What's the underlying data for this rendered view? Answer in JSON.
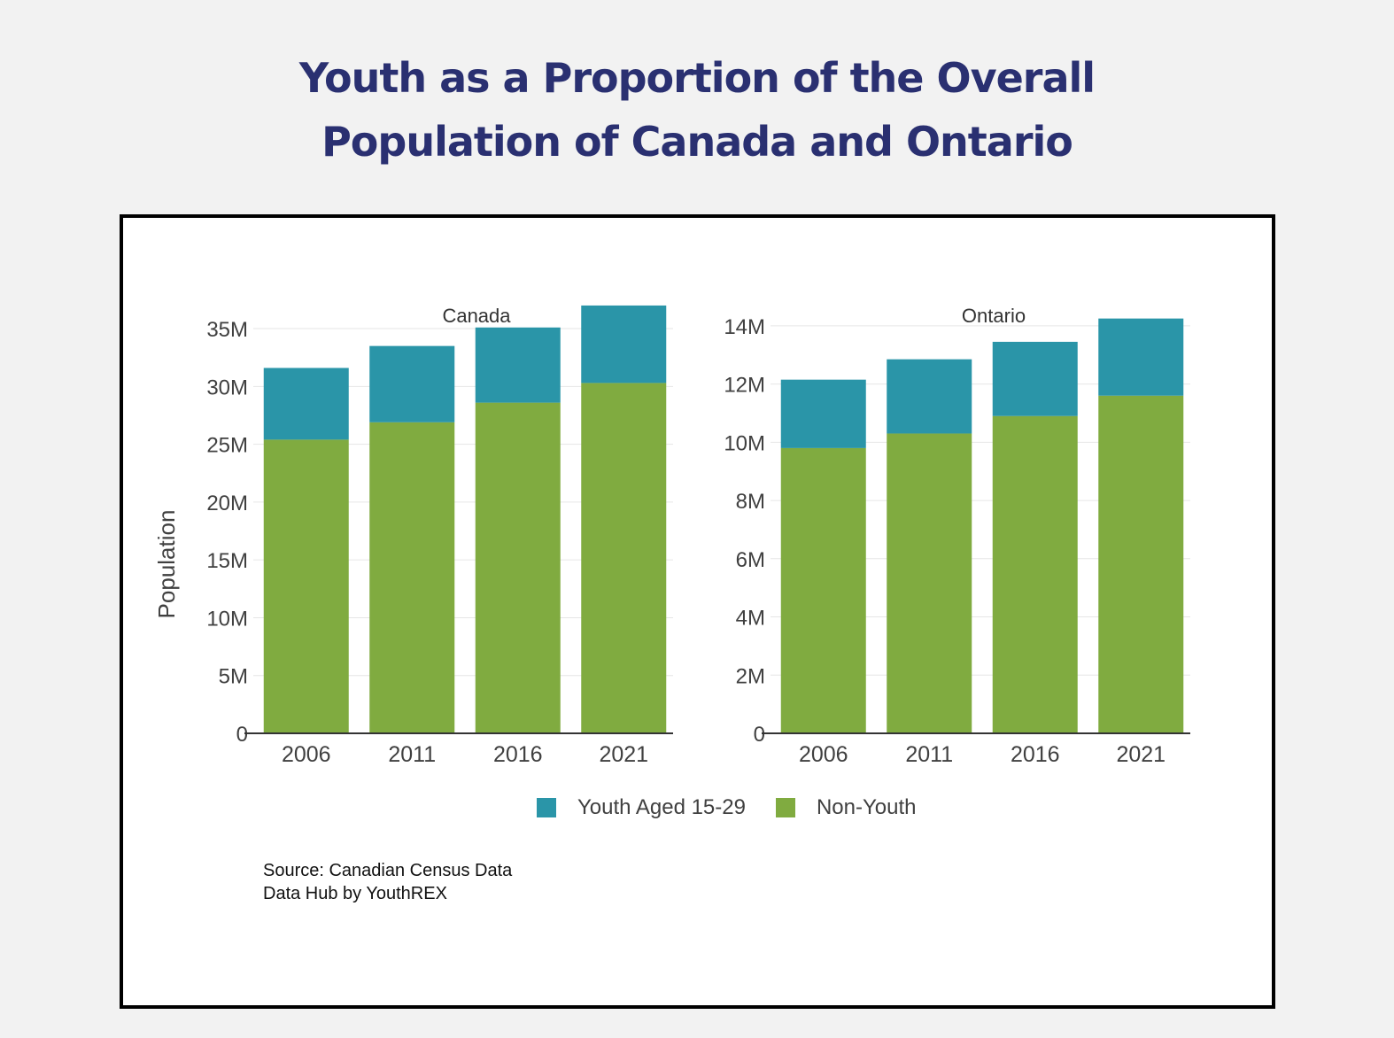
{
  "title": {
    "line1": "Youth as a Proportion of the Overall",
    "line2": "Population of Canada and Ontario"
  },
  "colors": {
    "youth": "#2a95a8",
    "non_youth": "#80ab40",
    "title": "#2a3071",
    "frame_border": "#000000",
    "gridline": "#e6e6e6",
    "axis_text": "#404040"
  },
  "legend": {
    "items": [
      {
        "label": "Youth Aged 15-29",
        "color": "#2a95a8"
      },
      {
        "label": "Non-Youth",
        "color": "#80ab40"
      }
    ]
  },
  "source": {
    "line1": "Source: Canadian Census Data",
    "line2": "Data Hub by YouthREX"
  },
  "chart_data": [
    {
      "type": "bar",
      "stacked": true,
      "title": "Canada",
      "xlabel": "",
      "ylabel": "Population",
      "categories": [
        "2006",
        "2011",
        "2016",
        "2021"
      ],
      "series": [
        {
          "name": "Non-Youth",
          "values": [
            25400000,
            26900000,
            28600000,
            30300000
          ]
        },
        {
          "name": "Youth Aged 15-29",
          "values": [
            6200000,
            6600000,
            6500000,
            6700000
          ]
        }
      ],
      "ylim": [
        0,
        36000000
      ],
      "yticks": [
        0,
        5000000,
        10000000,
        15000000,
        20000000,
        25000000,
        30000000,
        35000000
      ],
      "ytick_labels": [
        "0",
        "5M",
        "10M",
        "15M",
        "20M",
        "25M",
        "30M",
        "35M"
      ],
      "grid": true
    },
    {
      "type": "bar",
      "stacked": true,
      "title": "Ontario",
      "xlabel": "",
      "ylabel": "",
      "categories": [
        "2006",
        "2011",
        "2016",
        "2021"
      ],
      "series": [
        {
          "name": "Non-Youth",
          "values": [
            9800000,
            10300000,
            10900000,
            11600000
          ]
        },
        {
          "name": "Youth Aged 15-29",
          "values": [
            2350000,
            2550000,
            2550000,
            2650000
          ]
        }
      ],
      "ylim": [
        0,
        14300000
      ],
      "yticks": [
        0,
        2000000,
        4000000,
        6000000,
        8000000,
        10000000,
        12000000,
        14000000
      ],
      "ytick_labels": [
        "0",
        "2M",
        "4M",
        "6M",
        "8M",
        "10M",
        "12M",
        "14M"
      ],
      "grid": true
    }
  ]
}
